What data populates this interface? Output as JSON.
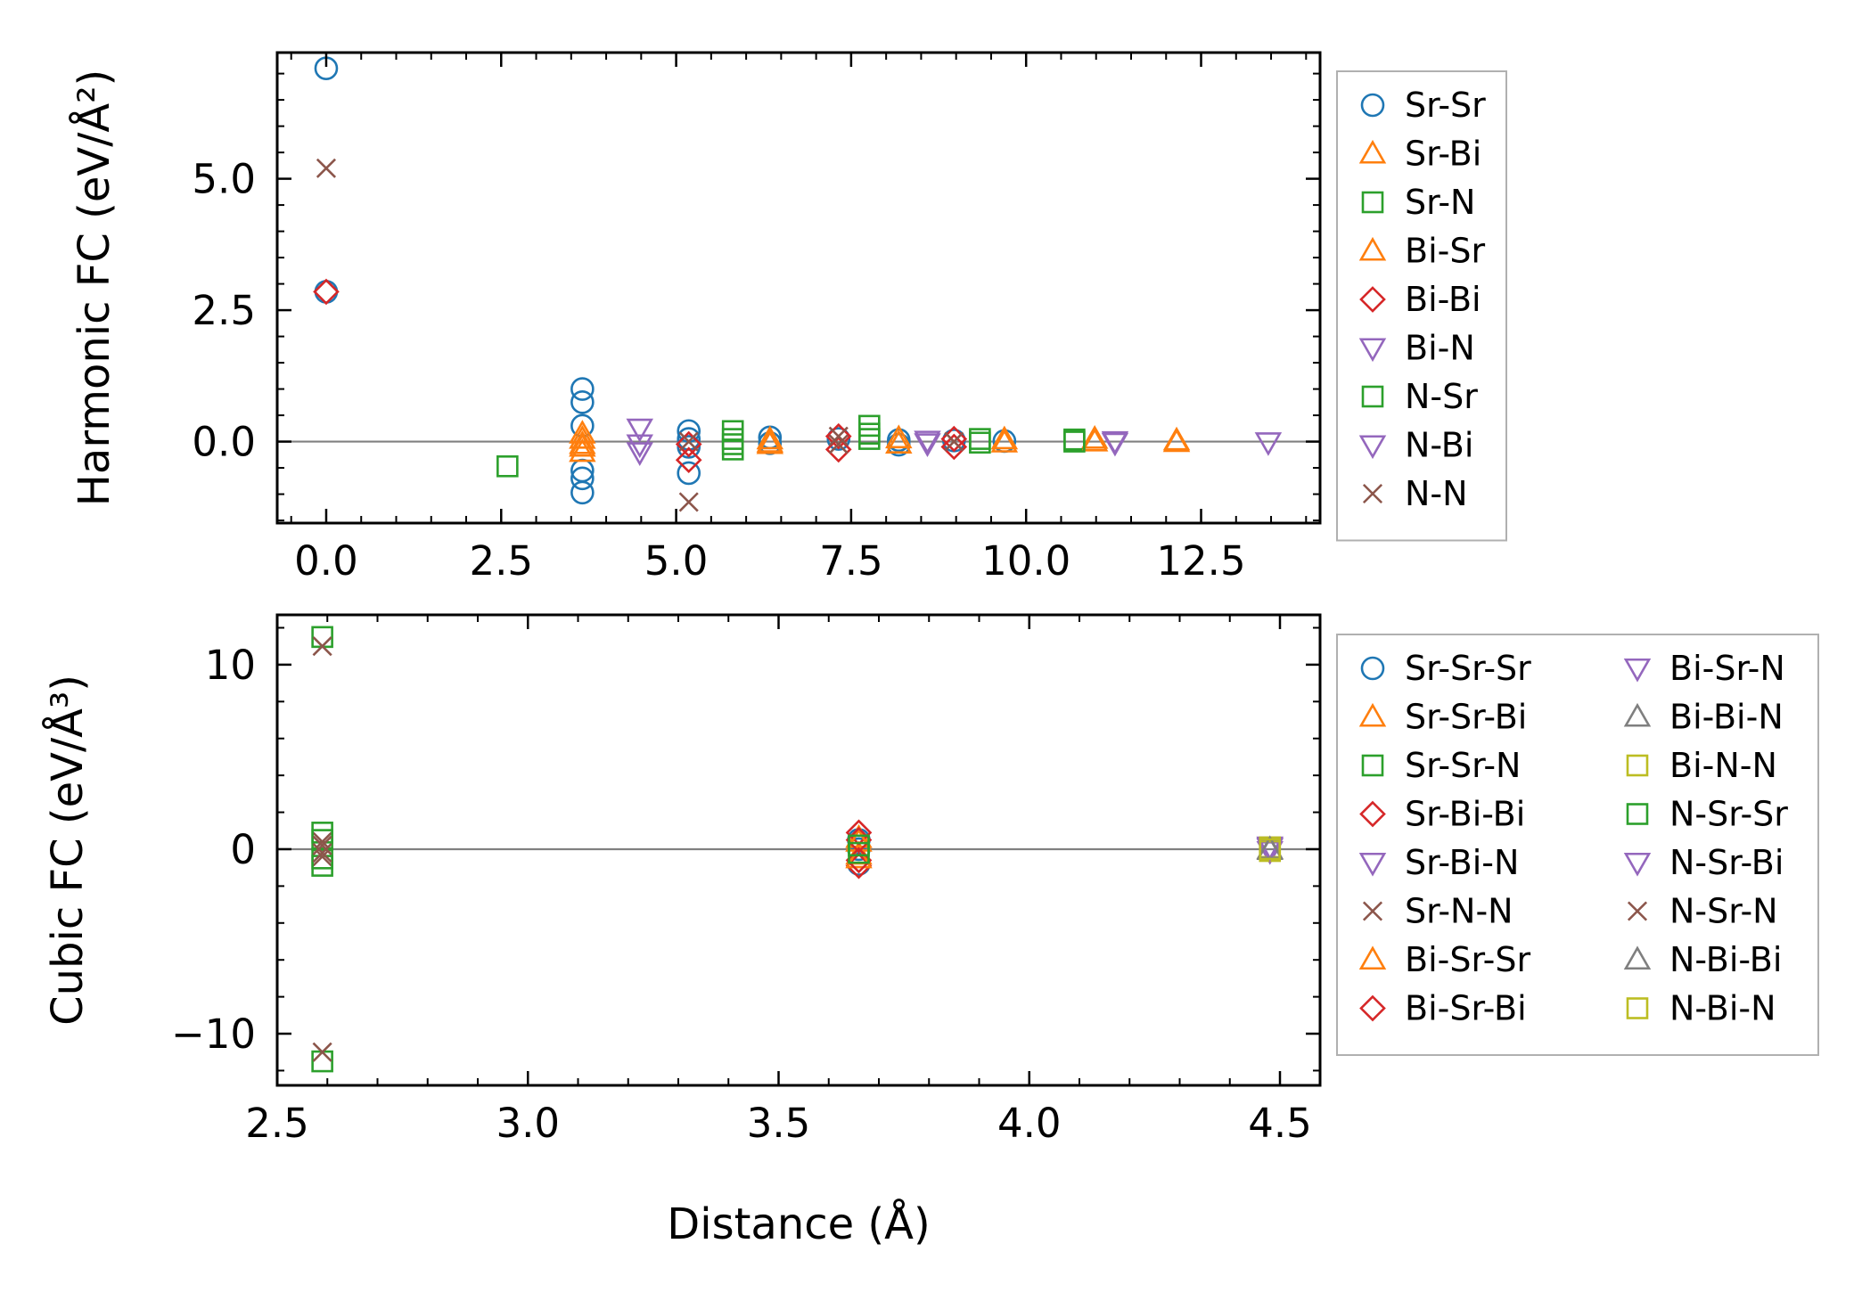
{
  "chart_data": [
    {
      "id": "harmonic",
      "type": "scatter",
      "ylabel": "Harmonic FC (eV/Å²)",
      "xlim": [
        -0.7,
        14.2
      ],
      "ylim": [
        -1.55,
        7.4
      ],
      "xticks": [
        0,
        2.5,
        5,
        7.5,
        10,
        12.5
      ],
      "xtick_labels": [
        "0.0",
        "2.5",
        "5.0",
        "7.5",
        "10.0",
        "12.5"
      ],
      "yticks": [
        0,
        2.5,
        5
      ],
      "ytick_labels": [
        "0.0",
        "2.5",
        "5.0"
      ],
      "zero_line": true,
      "legend_location": "outside-right",
      "series": [
        {
          "name": "Sr-Sr",
          "marker": "circle",
          "color": "#1f77b4",
          "points": [
            [
              0,
              7.1
            ],
            [
              0,
              2.85
            ],
            [
              3.66,
              1.0
            ],
            [
              3.66,
              0.75
            ],
            [
              3.66,
              0.3
            ],
            [
              3.66,
              -0.55
            ],
            [
              3.66,
              -0.7
            ],
            [
              3.66,
              -0.97
            ],
            [
              5.18,
              0.2
            ],
            [
              5.18,
              0.05
            ],
            [
              5.18,
              -0.1
            ],
            [
              5.18,
              -0.6
            ],
            [
              6.34,
              0.08
            ],
            [
              6.34,
              -0.03
            ],
            [
              7.32,
              0.05
            ],
            [
              8.18,
              0.03
            ],
            [
              8.18,
              -0.06
            ],
            [
              8.97,
              0.02
            ],
            [
              9.69,
              0.01
            ]
          ]
        },
        {
          "name": "Sr-Bi",
          "marker": "triangle-up",
          "color": "#ff7f0e",
          "points": [
            [
              3.66,
              0.05
            ],
            [
              3.66,
              -0.1
            ],
            [
              3.66,
              -0.2
            ],
            [
              6.34,
              0.04
            ],
            [
              6.34,
              -0.05
            ],
            [
              8.18,
              0.06
            ],
            [
              9.69,
              0.04
            ],
            [
              10.98,
              0.05
            ],
            [
              12.15,
              0.02
            ]
          ]
        },
        {
          "name": "Sr-N",
          "marker": "square",
          "color": "#2ca02c",
          "points": [
            [
              2.59,
              -0.47
            ],
            [
              5.81,
              0.2
            ],
            [
              5.81,
              0.05
            ],
            [
              5.81,
              -0.15
            ],
            [
              7.76,
              0.3
            ],
            [
              7.76,
              0.05
            ],
            [
              9.34,
              0.05
            ],
            [
              10.69,
              0.04
            ]
          ]
        },
        {
          "name": "Bi-Sr",
          "marker": "triangle-up",
          "color": "#ff7f0e",
          "points": [
            [
              3.66,
              -0.05
            ],
            [
              3.66,
              0.15
            ],
            [
              6.34,
              -0.02
            ],
            [
              8.18,
              -0.04
            ],
            [
              9.69,
              -0.02
            ],
            [
              10.98,
              0.0
            ],
            [
              12.15,
              -0.01
            ]
          ]
        },
        {
          "name": "Bi-Bi",
          "marker": "diamond",
          "color": "#d62728",
          "points": [
            [
              0,
              2.85
            ],
            [
              5.18,
              -0.35
            ],
            [
              5.18,
              -0.05
            ],
            [
              7.32,
              0.1
            ],
            [
              7.32,
              -0.15
            ],
            [
              8.97,
              0.05
            ],
            [
              8.97,
              -0.1
            ]
          ]
        },
        {
          "name": "Bi-N",
          "marker": "triangle-down",
          "color": "#9467bd",
          "points": [
            [
              4.48,
              0.25
            ],
            [
              4.48,
              -0.2
            ],
            [
              8.59,
              0.02
            ],
            [
              11.27,
              0.01
            ],
            [
              13.46,
              -0.01
            ]
          ]
        },
        {
          "name": "N-Sr",
          "marker": "square",
          "color": "#2ca02c",
          "points": [
            [
              5.81,
              -0.05
            ],
            [
              7.76,
              0.15
            ],
            [
              9.34,
              -0.02
            ],
            [
              10.69,
              0.0
            ]
          ]
        },
        {
          "name": "N-Bi",
          "marker": "triangle-down",
          "color": "#9467bd",
          "points": [
            [
              4.48,
              -0.05
            ],
            [
              8.59,
              -0.03
            ],
            [
              11.27,
              -0.02
            ]
          ]
        },
        {
          "name": "N-N",
          "marker": "x",
          "color": "#8c564b",
          "points": [
            [
              0,
              5.2
            ],
            [
              5.18,
              -1.15
            ],
            [
              5.18,
              0.0
            ],
            [
              7.32,
              0.1
            ],
            [
              7.32,
              -0.05
            ],
            [
              8.97,
              0.0
            ]
          ]
        }
      ]
    },
    {
      "id": "cubic",
      "type": "scatter",
      "xlabel": "Distance (Å)",
      "ylabel": "Cubic FC (eV/Å³)",
      "xlim": [
        2.5,
        4.58
      ],
      "ylim": [
        -12.8,
        12.7
      ],
      "xticks": [
        2.5,
        3.0,
        3.5,
        4.0,
        4.5
      ],
      "xtick_labels": [
        "2.5",
        "3.0",
        "3.5",
        "4.0",
        "4.5"
      ],
      "yticks": [
        -10,
        0,
        10
      ],
      "ytick_labels": [
        "−10",
        "0",
        "10"
      ],
      "zero_line": true,
      "legend_location": "outside-right",
      "legend_columns": 2,
      "series": [
        {
          "name": "Sr-Sr-Sr",
          "marker": "circle",
          "color": "#1f77b4",
          "points": [
            [
              3.66,
              -0.8
            ],
            [
              3.66,
              0.5
            ],
            [
              3.66,
              0.0
            ]
          ]
        },
        {
          "name": "Sr-Sr-Bi",
          "marker": "triangle-up",
          "color": "#ff7f0e",
          "points": [
            [
              3.66,
              0.6
            ],
            [
              3.66,
              -0.3
            ]
          ]
        },
        {
          "name": "Sr-Sr-N",
          "marker": "square",
          "color": "#2ca02c",
          "points": [
            [
              2.59,
              11.5
            ],
            [
              2.59,
              0.9
            ],
            [
              2.59,
              -0.9
            ],
            [
              2.59,
              -11.5
            ]
          ]
        },
        {
          "name": "Sr-Bi-Bi",
          "marker": "diamond",
          "color": "#d62728",
          "points": [
            [
              3.66,
              0.9
            ],
            [
              3.66,
              -0.9
            ]
          ]
        },
        {
          "name": "Sr-Bi-N",
          "marker": "triangle-down",
          "color": "#9467bd",
          "points": [
            [
              4.48,
              0.1
            ],
            [
              4.48,
              -0.1
            ]
          ]
        },
        {
          "name": "Sr-N-N",
          "marker": "x",
          "color": "#8c564b",
          "points": [
            [
              2.59,
              11.0
            ],
            [
              2.59,
              0.4
            ],
            [
              2.59,
              -0.4
            ],
            [
              2.59,
              -11.0
            ]
          ]
        },
        {
          "name": "Bi-Sr-Sr",
          "marker": "triangle-up",
          "color": "#ff7f0e",
          "points": [
            [
              3.66,
              0.4
            ],
            [
              3.66,
              -0.5
            ]
          ]
        },
        {
          "name": "Bi-Sr-Bi",
          "marker": "diamond",
          "color": "#d62728",
          "points": [
            [
              3.66,
              0.5
            ],
            [
              3.66,
              -0.6
            ]
          ]
        },
        {
          "name": "Bi-Sr-N",
          "marker": "triangle-down",
          "color": "#9467bd",
          "points": [
            [
              4.48,
              0.15
            ]
          ]
        },
        {
          "name": "Bi-Bi-N",
          "marker": "triangle-up",
          "color": "#7f7f7f",
          "points": [
            [
              4.48,
              -0.05
            ]
          ]
        },
        {
          "name": "Bi-N-N",
          "marker": "square",
          "color": "#bcbd22",
          "points": [
            [
              4.48,
              0.1
            ],
            [
              4.48,
              -0.1
            ]
          ]
        },
        {
          "name": "N-Sr-Sr",
          "marker": "square",
          "color": "#2ca02c",
          "points": [
            [
              2.59,
              0.5
            ],
            [
              2.59,
              -0.5
            ],
            [
              3.66,
              0.2
            ],
            [
              3.66,
              -0.2
            ]
          ]
        },
        {
          "name": "N-Sr-Bi",
          "marker": "triangle-down",
          "color": "#9467bd",
          "points": [
            [
              4.48,
              0.05
            ]
          ]
        },
        {
          "name": "N-Sr-N",
          "marker": "x",
          "color": "#8c564b",
          "points": [
            [
              2.59,
              0.2
            ],
            [
              2.59,
              -0.2
            ]
          ]
        },
        {
          "name": "N-Bi-Bi",
          "marker": "triangle-up",
          "color": "#7f7f7f",
          "points": [
            [
              4.48,
              0.0
            ]
          ]
        },
        {
          "name": "N-Bi-N",
          "marker": "square",
          "color": "#bcbd22",
          "points": [
            [
              4.48,
              0.0
            ]
          ]
        }
      ]
    }
  ]
}
